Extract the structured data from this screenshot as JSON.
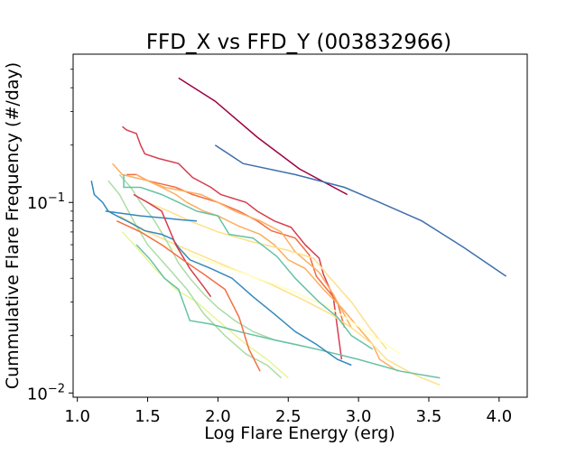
{
  "chart_data": {
    "type": "line",
    "title": "FFD_X vs FFD_Y (003832966)",
    "xlabel": "Log Flare Energy (erg)",
    "ylabel": "Cummulative Flare Frequency (#/day)",
    "yscale": "log",
    "xlim": [
      0.97,
      4.2
    ],
    "ylim": [
      0.0095,
      0.6
    ],
    "grid": false,
    "legend": "none",
    "x_ticks": [
      {
        "value": 1.0,
        "label": "1.0"
      },
      {
        "value": 1.5,
        "label": "1.5"
      },
      {
        "value": 2.0,
        "label": "2.0"
      },
      {
        "value": 2.5,
        "label": "2.5"
      },
      {
        "value": 3.0,
        "label": "3.0"
      },
      {
        "value": 3.5,
        "label": "3.5"
      },
      {
        "value": 4.0,
        "label": "4.0"
      }
    ],
    "y_ticks": [
      {
        "value": 0.01,
        "base": "10",
        "exp": "−2"
      },
      {
        "value": 0.1,
        "base": "10",
        "exp": "−1"
      }
    ],
    "series": [
      {
        "color": "#9e0142",
        "x": [
          1.72,
          1.98,
          2.28,
          2.58,
          2.92
        ],
        "y": [
          0.45,
          0.34,
          0.22,
          0.15,
          0.11
        ]
      },
      {
        "color": "#3f6fad",
        "x": [
          1.98,
          2.18,
          2.55,
          2.9,
          3.15,
          3.45,
          3.75,
          4.05
        ],
        "y": [
          0.2,
          0.16,
          0.14,
          0.12,
          0.1,
          0.08,
          0.058,
          0.041
        ]
      },
      {
        "color": "#d53e4f",
        "x": [
          1.32,
          1.35,
          1.42,
          1.45,
          1.48,
          1.58,
          1.72,
          1.82,
          1.95,
          2.02,
          2.2,
          2.28,
          2.4,
          2.52,
          2.62,
          2.72,
          2.75,
          2.82,
          2.88
        ],
        "y": [
          0.25,
          0.24,
          0.23,
          0.2,
          0.18,
          0.17,
          0.16,
          0.135,
          0.12,
          0.11,
          0.1,
          0.09,
          0.08,
          0.074,
          0.06,
          0.051,
          0.042,
          0.032,
          0.015
        ]
      },
      {
        "color": "#f46d43",
        "x": [
          1.35,
          1.42,
          1.5,
          1.6,
          1.7,
          1.82,
          2.0,
          2.15,
          2.28,
          2.38,
          2.55,
          2.65,
          2.7,
          2.85,
          2.9
        ],
        "y": [
          0.14,
          0.14,
          0.13,
          0.125,
          0.12,
          0.11,
          0.1,
          0.09,
          0.08,
          0.071,
          0.065,
          0.053,
          0.041,
          0.03,
          0.022
        ]
      },
      {
        "color": "#fdae61",
        "x": [
          1.25,
          1.32,
          1.5,
          1.62,
          1.75,
          1.88,
          2.0,
          2.12,
          2.3,
          2.45,
          2.55,
          2.72,
          2.82,
          2.95
        ],
        "y": [
          0.16,
          0.14,
          0.13,
          0.12,
          0.115,
          0.11,
          0.1,
          0.09,
          0.08,
          0.07,
          0.055,
          0.043,
          0.033,
          0.022
        ]
      },
      {
        "color": "#fdae61",
        "x": [
          1.42,
          1.5,
          1.6,
          1.7,
          1.78,
          1.9,
          2.0,
          2.15,
          2.3,
          2.4,
          2.5,
          2.62,
          2.75,
          2.88,
          3.0,
          3.1,
          3.15,
          3.28
        ],
        "y": [
          0.14,
          0.13,
          0.12,
          0.11,
          0.1,
          0.09,
          0.085,
          0.075,
          0.068,
          0.06,
          0.05,
          0.045,
          0.035,
          0.028,
          0.022,
          0.018,
          0.015,
          0.013
        ]
      },
      {
        "color": "#fee08b",
        "x": [
          1.5,
          1.65,
          1.8,
          2.0,
          2.25,
          2.5,
          2.68,
          2.8,
          2.95,
          3.08,
          3.2
        ],
        "y": [
          0.1,
          0.09,
          0.08,
          0.07,
          0.062,
          0.056,
          0.051,
          0.04,
          0.03,
          0.022,
          0.017
        ]
      },
      {
        "color": "#fee08b",
        "x": [
          1.3,
          1.5,
          1.7,
          1.9,
          2.1,
          2.35,
          2.6,
          2.8,
          2.95,
          3.1,
          3.2,
          3.35,
          3.45,
          3.58
        ],
        "y": [
          0.085,
          0.07,
          0.06,
          0.052,
          0.045,
          0.038,
          0.031,
          0.026,
          0.022,
          0.018,
          0.015,
          0.013,
          0.012,
          0.011
        ]
      },
      {
        "color": "#ffffbf",
        "x": [
          1.4,
          1.6,
          1.9,
          2.2,
          2.5,
          2.8,
          3.1,
          3.3
        ],
        "y": [
          0.075,
          0.06,
          0.05,
          0.042,
          0.035,
          0.028,
          0.02,
          0.016
        ]
      },
      {
        "color": "#e6f598",
        "x": [
          1.32,
          1.45,
          1.55,
          1.7,
          1.85,
          2.0,
          2.2,
          2.35,
          2.5
        ],
        "y": [
          0.07,
          0.055,
          0.045,
          0.035,
          0.03,
          0.024,
          0.018,
          0.015,
          0.012
        ]
      },
      {
        "color": "#abdda4",
        "x": [
          1.22,
          1.3,
          1.4,
          1.5,
          1.65,
          1.78,
          1.9,
          2.05,
          2.2,
          2.35,
          2.45
        ],
        "y": [
          0.13,
          0.11,
          0.08,
          0.06,
          0.045,
          0.035,
          0.026,
          0.02,
          0.016,
          0.014,
          0.012
        ]
      },
      {
        "color": "#abdda4",
        "x": [
          1.3,
          1.38,
          1.45,
          1.55,
          1.65,
          1.72,
          1.8,
          1.9,
          2.0,
          2.12,
          2.25,
          2.4,
          2.55,
          2.7
        ],
        "y": [
          0.14,
          0.12,
          0.1,
          0.08,
          0.06,
          0.048,
          0.04,
          0.033,
          0.028,
          0.024,
          0.021,
          0.019,
          0.018,
          0.017
        ]
      },
      {
        "color": "#66c2a5",
        "x": [
          1.33,
          1.33,
          1.45,
          1.6,
          1.72,
          1.85,
          2.0,
          2.08,
          2.25,
          2.42,
          2.55,
          2.72,
          2.85,
          2.95,
          3.1
        ],
        "y": [
          0.14,
          0.12,
          0.12,
          0.11,
          0.1,
          0.09,
          0.085,
          0.068,
          0.065,
          0.052,
          0.04,
          0.03,
          0.025,
          0.02,
          0.017
        ]
      },
      {
        "color": "#66c2a5",
        "x": [
          1.42,
          1.52,
          1.62,
          1.72,
          1.8,
          1.95,
          2.15,
          2.4,
          2.7,
          3.0,
          3.3,
          3.58
        ],
        "y": [
          0.06,
          0.05,
          0.04,
          0.035,
          0.024,
          0.023,
          0.021,
          0.019,
          0.017,
          0.015,
          0.013,
          0.012
        ]
      },
      {
        "color": "#3288bd",
        "x": [
          1.1,
          1.12,
          1.18,
          1.22,
          1.28,
          1.38,
          1.48,
          1.6,
          1.68,
          1.72,
          1.8,
          1.95,
          2.1,
          2.25,
          2.4,
          2.55,
          2.7,
          2.85,
          2.95
        ],
        "y": [
          0.13,
          0.11,
          0.1,
          0.09,
          0.085,
          0.078,
          0.071,
          0.068,
          0.064,
          0.058,
          0.05,
          0.045,
          0.04,
          0.032,
          0.026,
          0.021,
          0.018,
          0.015,
          0.014
        ]
      },
      {
        "color": "#3288bd",
        "x": [
          1.2,
          1.3,
          1.45,
          1.6,
          1.75,
          1.85
        ],
        "y": [
          0.09,
          0.088,
          0.085,
          0.083,
          0.081,
          0.08
        ]
      },
      {
        "color": "#d53e4f",
        "x": [
          1.4,
          1.5,
          1.6,
          1.7,
          1.8,
          1.9,
          1.95
        ],
        "y": [
          0.11,
          0.1,
          0.09,
          0.06,
          0.045,
          0.036,
          0.032
        ]
      },
      {
        "color": "#f46d43",
        "x": [
          1.28,
          1.45,
          1.6,
          1.75,
          1.9,
          2.05,
          2.15,
          2.22,
          2.3
        ],
        "y": [
          0.08,
          0.07,
          0.06,
          0.05,
          0.042,
          0.035,
          0.025,
          0.017,
          0.013
        ]
      }
    ]
  }
}
